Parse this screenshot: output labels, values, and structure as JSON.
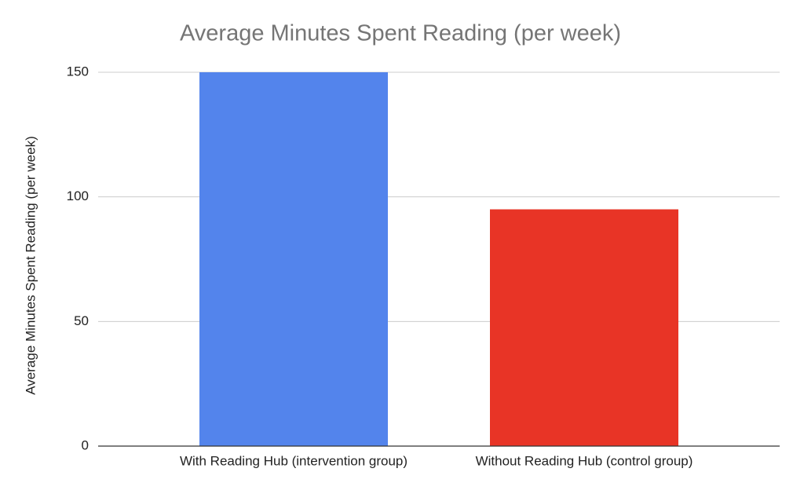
{
  "chart_data": {
    "type": "bar",
    "title": "Average Minutes Spent Reading (per week)",
    "y_label": "Average Minutes Spent Reading (per week)",
    "categories": [
      "With Reading Hub (intervention group)",
      "Without Reading Hub (control group)"
    ],
    "values": [
      150,
      95
    ],
    "colors": [
      "#5384ec",
      "#e83426"
    ],
    "ylim": [
      0,
      150
    ],
    "yticks": [
      0,
      50,
      100,
      150
    ],
    "grid": true
  }
}
